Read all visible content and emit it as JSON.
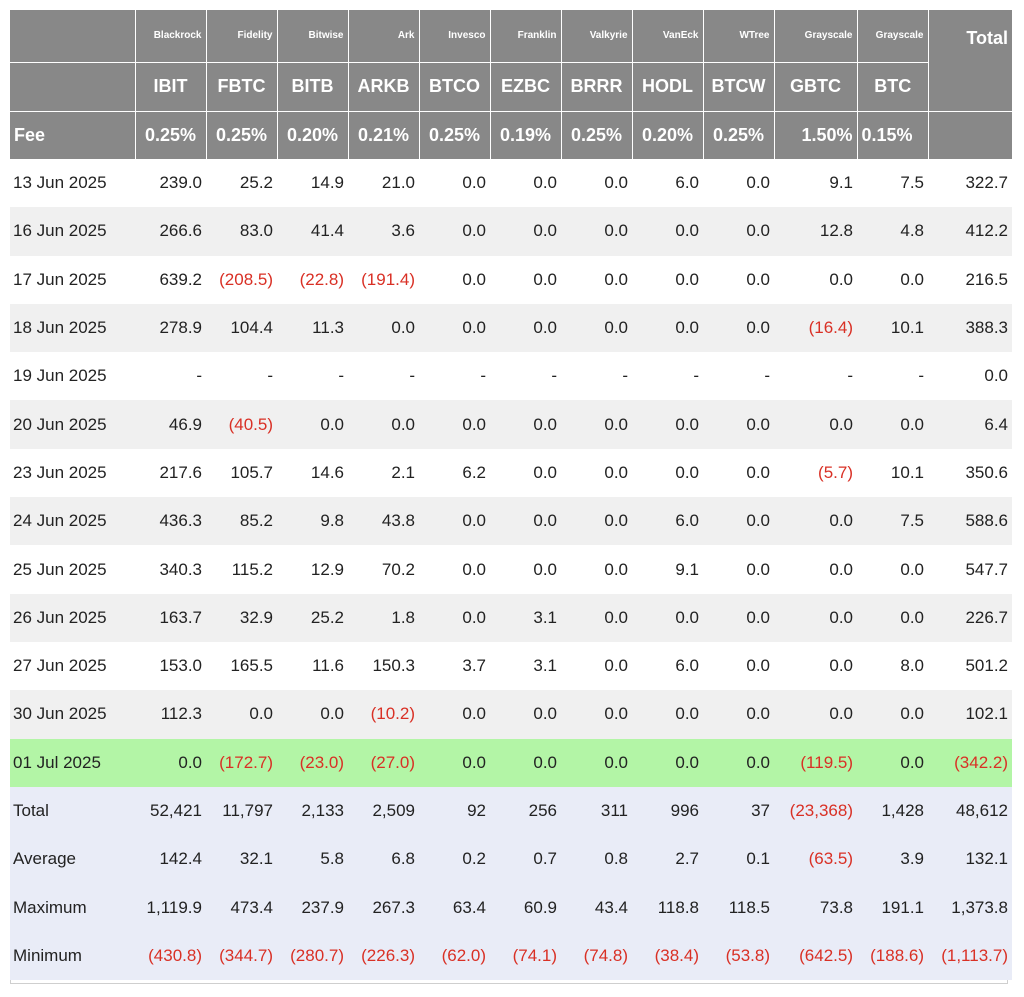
{
  "columns": {
    "issuers": [
      "Blackrock",
      "Fidelity",
      "Bitwise",
      "Ark",
      "Invesco",
      "Franklin",
      "Valkyrie",
      "VanEck",
      "WTree",
      "Grayscale",
      "Grayscale"
    ],
    "tickers": [
      "IBIT",
      "FBTC",
      "BITB",
      "ARKB",
      "BTCO",
      "EZBC",
      "BRRR",
      "HODL",
      "BTCW",
      "GBTC",
      "BTC"
    ],
    "fee_label": "Fee",
    "fees": [
      "0.25%",
      "0.25%",
      "0.20%",
      "0.21%",
      "0.25%",
      "0.19%",
      "0.25%",
      "0.20%",
      "0.25%",
      "1.50%",
      "0.15%"
    ],
    "total_label": "Total"
  },
  "rows": [
    {
      "date": "13 Jun 2025",
      "values": [
        "239.0",
        "25.2",
        "14.9",
        "21.0",
        "0.0",
        "0.0",
        "0.0",
        "6.0",
        "0.0",
        "9.1",
        "7.5"
      ],
      "total": "322.7"
    },
    {
      "date": "16 Jun 2025",
      "values": [
        "266.6",
        "83.0",
        "41.4",
        "3.6",
        "0.0",
        "0.0",
        "0.0",
        "0.0",
        "0.0",
        "12.8",
        "4.8"
      ],
      "total": "412.2"
    },
    {
      "date": "17 Jun 2025",
      "values": [
        "639.2",
        "(208.5)",
        "(22.8)",
        "(191.4)",
        "0.0",
        "0.0",
        "0.0",
        "0.0",
        "0.0",
        "0.0",
        "0.0"
      ],
      "total": "216.5"
    },
    {
      "date": "18 Jun 2025",
      "values": [
        "278.9",
        "104.4",
        "11.3",
        "0.0",
        "0.0",
        "0.0",
        "0.0",
        "0.0",
        "0.0",
        "(16.4)",
        "10.1"
      ],
      "total": "388.3"
    },
    {
      "date": "19 Jun 2025",
      "values": [
        "-",
        "-",
        "-",
        "-",
        "-",
        "-",
        "-",
        "-",
        "-",
        "-",
        "-"
      ],
      "total": "0.0"
    },
    {
      "date": "20 Jun 2025",
      "values": [
        "46.9",
        "(40.5)",
        "0.0",
        "0.0",
        "0.0",
        "0.0",
        "0.0",
        "0.0",
        "0.0",
        "0.0",
        "0.0"
      ],
      "total": "6.4"
    },
    {
      "date": "23 Jun 2025",
      "values": [
        "217.6",
        "105.7",
        "14.6",
        "2.1",
        "6.2",
        "0.0",
        "0.0",
        "0.0",
        "0.0",
        "(5.7)",
        "10.1"
      ],
      "total": "350.6"
    },
    {
      "date": "24 Jun 2025",
      "values": [
        "436.3",
        "85.2",
        "9.8",
        "43.8",
        "0.0",
        "0.0",
        "0.0",
        "6.0",
        "0.0",
        "0.0",
        "7.5"
      ],
      "total": "588.6"
    },
    {
      "date": "25 Jun 2025",
      "values": [
        "340.3",
        "115.2",
        "12.9",
        "70.2",
        "0.0",
        "0.0",
        "0.0",
        "9.1",
        "0.0",
        "0.0",
        "0.0"
      ],
      "total": "547.7"
    },
    {
      "date": "26 Jun 2025",
      "values": [
        "163.7",
        "32.9",
        "25.2",
        "1.8",
        "0.0",
        "3.1",
        "0.0",
        "0.0",
        "0.0",
        "0.0",
        "0.0"
      ],
      "total": "226.7"
    },
    {
      "date": "27 Jun 2025",
      "values": [
        "153.0",
        "165.5",
        "11.6",
        "150.3",
        "3.7",
        "3.1",
        "0.0",
        "6.0",
        "0.0",
        "0.0",
        "8.0"
      ],
      "total": "501.2"
    },
    {
      "date": "30 Jun 2025",
      "values": [
        "112.3",
        "0.0",
        "0.0",
        "(10.2)",
        "0.0",
        "0.0",
        "0.0",
        "0.0",
        "0.0",
        "0.0",
        "0.0"
      ],
      "total": "102.1"
    },
    {
      "date": "01 Jul 2025",
      "values": [
        "0.0",
        "(172.7)",
        "(23.0)",
        "(27.0)",
        "0.0",
        "0.0",
        "0.0",
        "0.0",
        "0.0",
        "(119.5)",
        "0.0"
      ],
      "total": "(342.2)",
      "highlight": true
    }
  ],
  "summary": [
    {
      "label": "Total",
      "values": [
        "52,421",
        "11,797",
        "2,133",
        "2,509",
        "92",
        "256",
        "311",
        "996",
        "37",
        "(23,368)",
        "1,428"
      ],
      "total": "48,612"
    },
    {
      "label": "Average",
      "values": [
        "142.4",
        "32.1",
        "5.8",
        "6.8",
        "0.2",
        "0.7",
        "0.8",
        "2.7",
        "0.1",
        "(63.5)",
        "3.9"
      ],
      "total": "132.1"
    },
    {
      "label": "Maximum",
      "values": [
        "1,119.9",
        "473.4",
        "237.9",
        "267.3",
        "63.4",
        "60.9",
        "43.4",
        "118.8",
        "118.5",
        "73.8",
        "191.1"
      ],
      "total": "1,373.8"
    },
    {
      "label": "Minimum",
      "values": [
        "(430.8)",
        "(344.7)",
        "(280.7)",
        "(226.3)",
        "(62.0)",
        "(74.1)",
        "(74.8)",
        "(38.4)",
        "(53.8)",
        "(642.5)",
        "(188.6)"
      ],
      "total": "(1,113.7)"
    }
  ],
  "colors": {
    "header_bg": "#888888",
    "negative": "#d93025",
    "highlight_row": "#b3f5a6",
    "summary_bg": "#e9ecf7",
    "stripe": "#f0f0f0"
  }
}
